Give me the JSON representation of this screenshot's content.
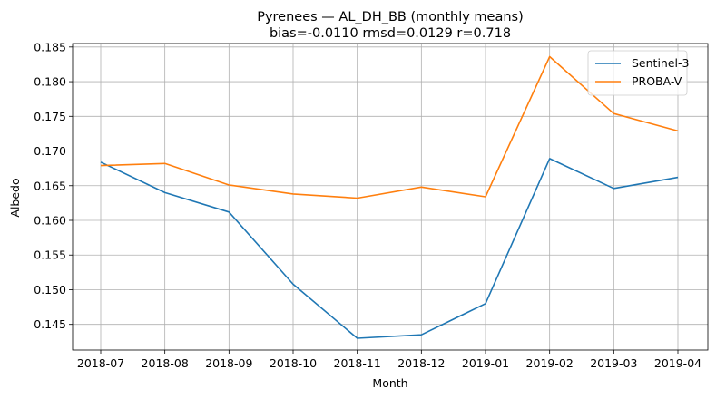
{
  "chart_data": {
    "type": "line",
    "title": "Pyrenees — AL_DH_BB (monthly means)",
    "subtitle": "bias=-0.0110  rmsd=0.0129  r=0.718",
    "xlabel": "Month",
    "ylabel": "Albedo",
    "categories": [
      "2018-07",
      "2018-08",
      "2018-09",
      "2018-10",
      "2018-11",
      "2018-12",
      "2019-01",
      "2019-02",
      "2019-03",
      "2019-04"
    ],
    "yticks": [
      "0.145",
      "0.150",
      "0.155",
      "0.160",
      "0.165",
      "0.170",
      "0.175",
      "0.180",
      "0.185"
    ],
    "ylim": [
      0.1413,
      0.1855
    ],
    "grid": true,
    "legend_position": "top-right",
    "series": [
      {
        "name": "Sentinel-3",
        "color": "#1f77b4",
        "values": [
          0.1684,
          0.164,
          0.1612,
          0.1508,
          0.143,
          0.1435,
          0.148,
          0.1689,
          0.1646,
          0.1662
        ]
      },
      {
        "name": "PROBA-V",
        "color": "#ff7f0e",
        "values": [
          0.1679,
          0.1682,
          0.1651,
          0.1638,
          0.1632,
          0.1648,
          0.1634,
          0.1836,
          0.1754,
          0.1729
        ]
      }
    ]
  }
}
